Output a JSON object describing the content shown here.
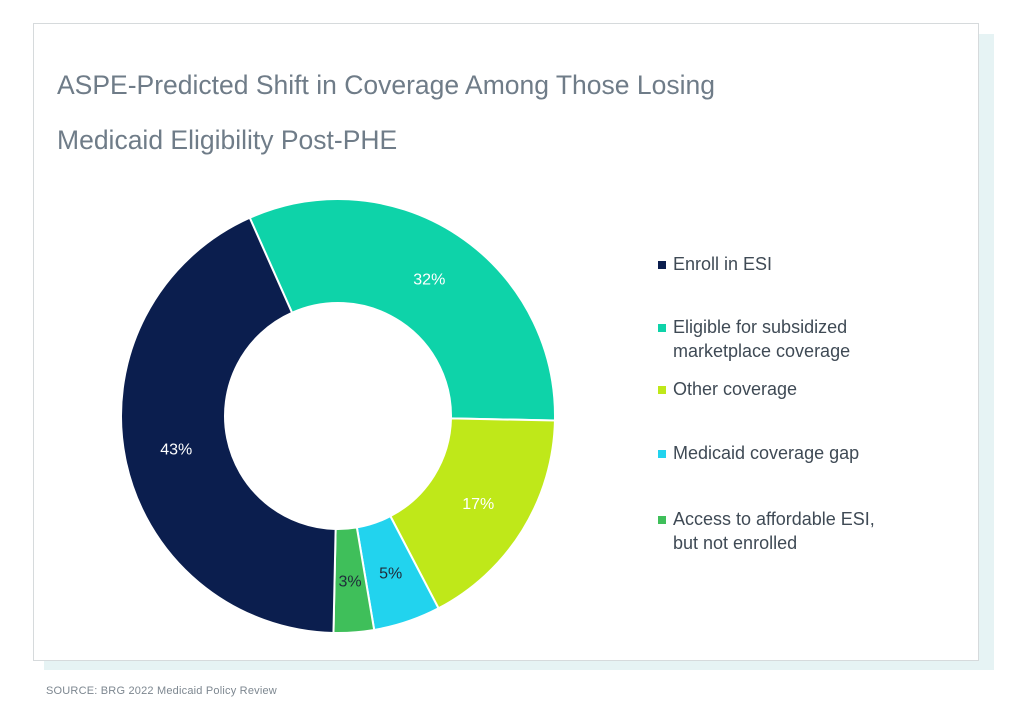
{
  "source": "SOURCE:  BRG 2022 Medicaid Policy Review",
  "chart_data": {
    "type": "pie",
    "title_lines": [
      "ASPE-Predicted Shift in Coverage Among Those Losing",
      "Medicaid Eligibility Post-PHE"
    ],
    "legend_position": "right",
    "slices": [
      {
        "name": "Enroll in ESI",
        "value": 43,
        "label": "43%",
        "color": "#0b1e4e",
        "label_color": "#ffffff"
      },
      {
        "name": "Eligible for subsidized marketplace coverage",
        "value": 32,
        "label": "32%",
        "color": "#0ed3a9",
        "label_color": "#ffffff"
      },
      {
        "name": "Other coverage",
        "value": 17,
        "label": "17%",
        "color": "#bfe819",
        "label_color": "#ffffff"
      },
      {
        "name": "Medicaid coverage gap",
        "value": 5,
        "label": "5%",
        "color": "#22d3ee",
        "label_color": "#1f2b3a"
      },
      {
        "name": "Access to affordable ESI, but not enrolled",
        "value": 3,
        "label": "3%",
        "color": "#3fbf5a",
        "label_color": "#1f2b3a"
      }
    ]
  }
}
